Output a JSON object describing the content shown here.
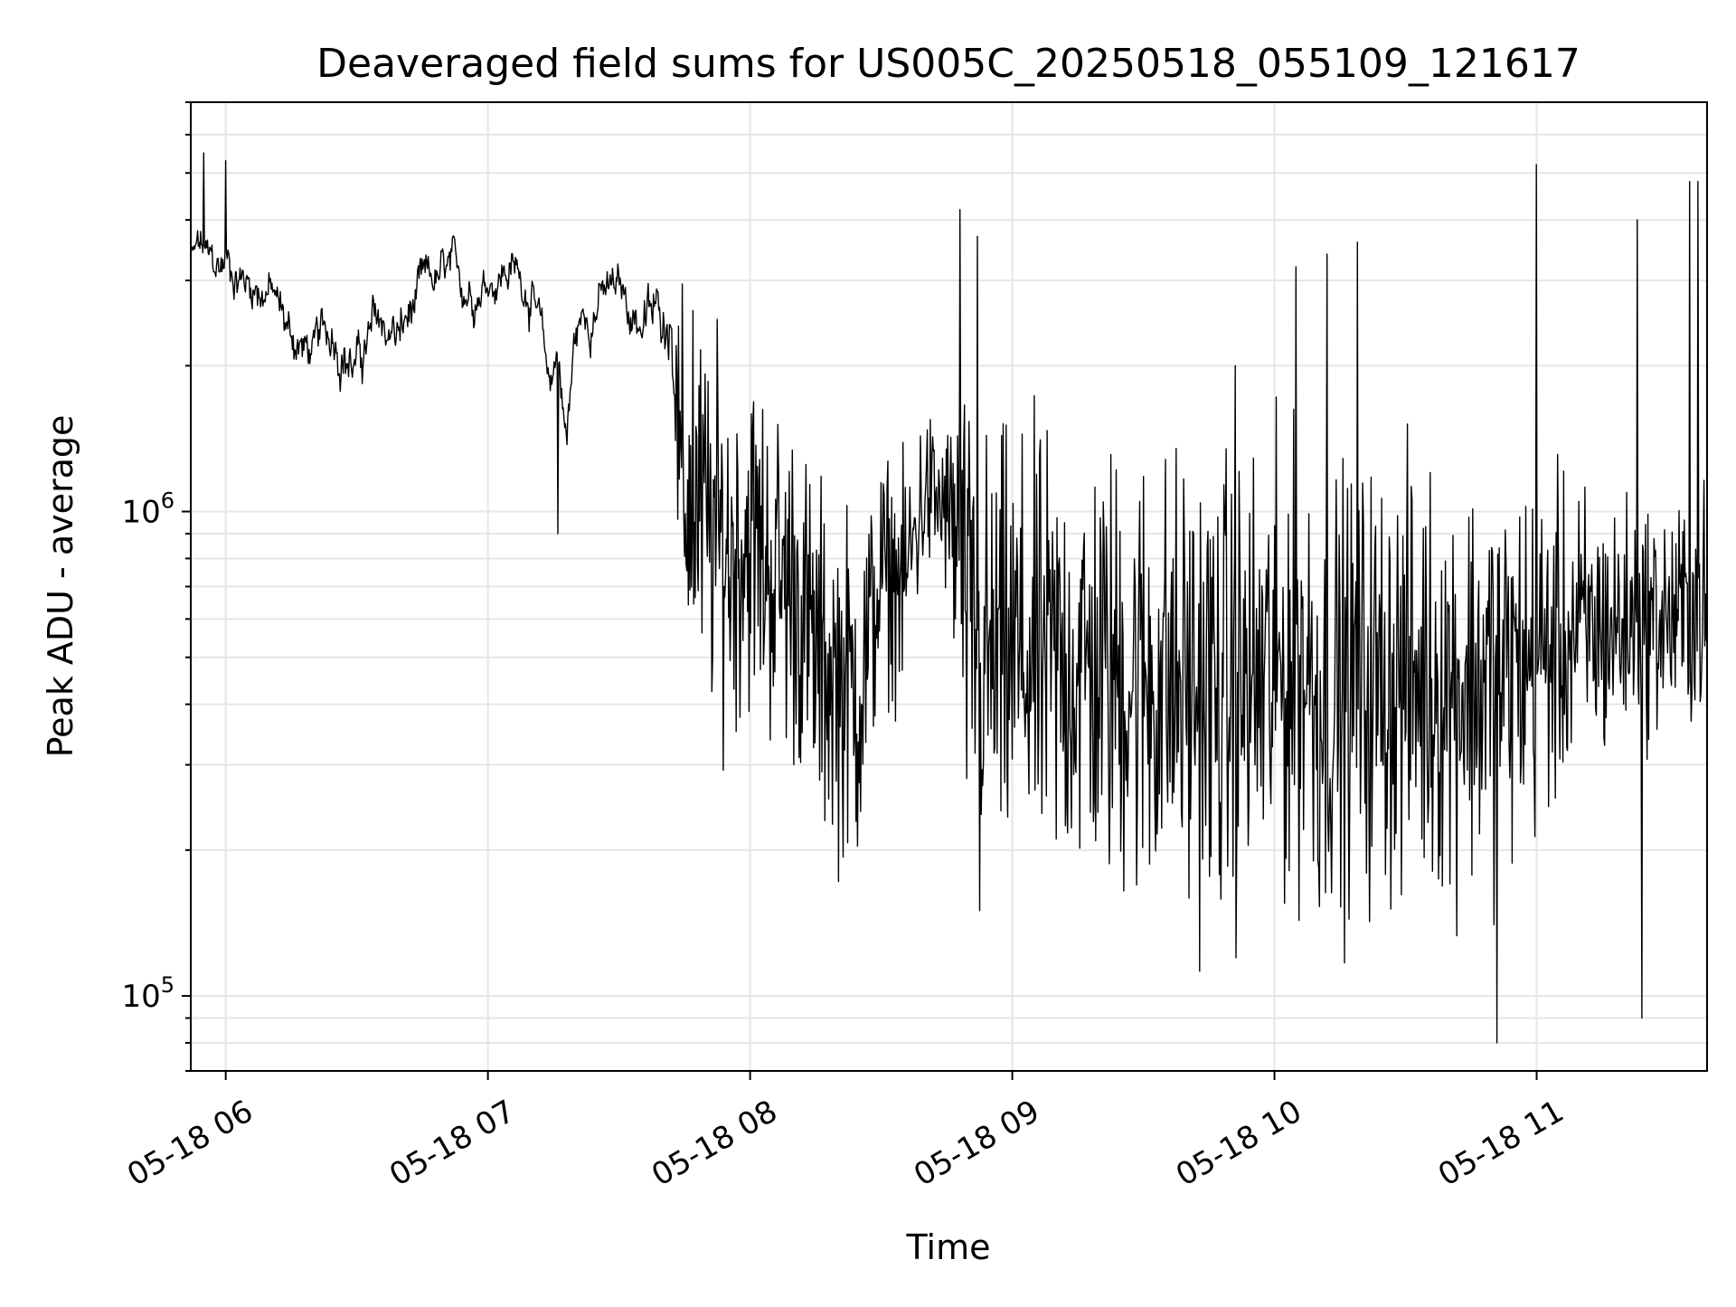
{
  "chart_data": {
    "type": "line",
    "title": "Deaveraged field sums for US005C_20250518_055109_121617",
    "xlabel": "Time",
    "ylabel": "Peak ADU - average",
    "yscale": "log",
    "grid": true,
    "xlim": [
      "2025-05-18T05:52:00",
      "2025-05-18T11:39:00"
    ],
    "ylim": [
      70000,
      7000000
    ],
    "x_ticks": [
      "05-18 06",
      "05-18 07",
      "05-18 08",
      "05-18 09",
      "05-18 10",
      "05-18 11"
    ],
    "y_ticks": [
      {
        "base": "10",
        "exp": "5",
        "value": 100000
      },
      {
        "base": "10",
        "exp": "6",
        "value": 1000000
      }
    ],
    "line_color": "#000000",
    "series": [
      {
        "x": [
          "2025-05-18T05:52:00",
          "2025-05-18T05:54:00",
          "2025-05-18T05:56:00",
          "2025-05-18T05:58:00",
          "2025-05-18T06:00:00",
          "2025-05-18T06:05:00",
          "2025-05-18T06:10:00",
          "2025-05-18T06:15:00",
          "2025-05-18T06:20:00",
          "2025-05-18T06:25:00",
          "2025-05-18T06:30:00",
          "2025-05-18T06:35:00",
          "2025-05-18T06:40:00",
          "2025-05-18T06:45:00",
          "2025-05-18T06:50:00",
          "2025-05-18T06:55:00",
          "2025-05-18T07:00:00",
          "2025-05-18T07:05:00",
          "2025-05-18T07:10:00",
          "2025-05-18T07:14:00",
          "2025-05-18T07:16:00",
          "2025-05-18T07:18:00",
          "2025-05-18T07:20:00",
          "2025-05-18T07:25:00",
          "2025-05-18T07:30:00",
          "2025-05-18T07:35:00",
          "2025-05-18T07:40:00",
          "2025-05-18T07:42:00",
          "2025-05-18T07:44:00",
          "2025-05-18T07:48:00",
          "2025-05-18T07:52:00",
          "2025-05-18T07:56:00",
          "2025-05-18T08:00:00",
          "2025-05-18T08:05:00",
          "2025-05-18T08:10:00",
          "2025-05-18T08:15:00",
          "2025-05-18T08:20:00",
          "2025-05-18T08:25:00",
          "2025-05-18T08:30:00",
          "2025-05-18T08:35:00",
          "2025-05-18T08:40:00",
          "2025-05-18T08:45:00",
          "2025-05-18T08:48:00",
          "2025-05-18T08:50:00",
          "2025-05-18T08:52:00",
          "2025-05-18T08:55:00",
          "2025-05-18T09:00:00",
          "2025-05-18T09:10:00",
          "2025-05-18T09:20:00",
          "2025-05-18T09:30:00",
          "2025-05-18T09:40:00",
          "2025-05-18T09:50:00",
          "2025-05-18T10:00:00",
          "2025-05-18T10:08:00",
          "2025-05-18T10:10:00",
          "2025-05-18T10:15:00",
          "2025-05-18T10:20:00",
          "2025-05-18T10:30:00",
          "2025-05-18T10:40:00",
          "2025-05-18T10:50:00",
          "2025-05-18T11:00:00",
          "2025-05-18T11:10:00",
          "2025-05-18T11:20:00",
          "2025-05-18T11:25:00",
          "2025-05-18T11:30:00",
          "2025-05-18T11:35:00",
          "2025-05-18T11:39:00"
        ],
        "center": [
          3300000,
          3500000,
          3200000,
          3100000,
          3300000,
          3000000,
          2900000,
          2300000,
          2100000,
          2400000,
          2000000,
          2400000,
          2300000,
          2800000,
          3000000,
          2900000,
          3100000,
          3200000,
          2900000,
          1800000,
          2200000,
          1400000,
          2300000,
          2800000,
          2800000,
          2500000,
          2500000,
          2600000,
          1100000,
          1000000,
          900000,
          800000,
          900000,
          750000,
          700000,
          500000,
          450000,
          420000,
          750000,
          700000,
          1100000,
          1000000,
          800000,
          550000,
          500000,
          480000,
          500000,
          480000,
          470000,
          450000,
          430000,
          420000,
          450000,
          480000,
          400000,
          420000,
          430000,
          450000,
          440000,
          450000,
          500000,
          560000,
          580000,
          600000,
          600000,
          620000,
          640000
        ],
        "spread": [
          0.04,
          0.05,
          0.05,
          0.05,
          0.05,
          0.05,
          0.05,
          0.05,
          0.05,
          0.06,
          0.06,
          0.06,
          0.06,
          0.05,
          0.05,
          0.05,
          0.05,
          0.05,
          0.05,
          0.05,
          0.05,
          0.06,
          0.06,
          0.05,
          0.05,
          0.06,
          0.06,
          0.06,
          0.32,
          0.32,
          0.32,
          0.3,
          0.3,
          0.3,
          0.3,
          0.3,
          0.3,
          0.3,
          0.2,
          0.2,
          0.15,
          0.15,
          0.35,
          0.38,
          0.38,
          0.38,
          0.38,
          0.38,
          0.38,
          0.4,
          0.4,
          0.4,
          0.4,
          0.38,
          0.38,
          0.38,
          0.38,
          0.37,
          0.36,
          0.35,
          0.3,
          0.25,
          0.22,
          0.2,
          0.2,
          0.2,
          0.2
        ]
      }
    ],
    "spikes": [
      {
        "x": "2025-05-18T05:55:00",
        "y": 5500000
      },
      {
        "x": "2025-05-18T06:00:00",
        "y": 5300000
      },
      {
        "x": "2025-05-18T07:16:00",
        "y": 900000
      },
      {
        "x": "2025-05-18T07:47:00",
        "y": 2600000
      },
      {
        "x": "2025-05-18T08:48:00",
        "y": 4200000
      },
      {
        "x": "2025-05-18T08:52:00",
        "y": 3700000
      },
      {
        "x": "2025-05-18T08:52:30",
        "y": 150000
      },
      {
        "x": "2025-05-18T09:51:00",
        "y": 2000000
      },
      {
        "x": "2025-05-18T10:05:00",
        "y": 3200000
      },
      {
        "x": "2025-05-18T10:12:00",
        "y": 3400000
      },
      {
        "x": "2025-05-18T10:19:00",
        "y": 3600000
      },
      {
        "x": "2025-05-18T10:51:00",
        "y": 80000
      },
      {
        "x": "2025-05-18T11:00:00",
        "y": 5200000
      },
      {
        "x": "2025-05-18T11:23:00",
        "y": 4000000
      },
      {
        "x": "2025-05-18T11:24:00",
        "y": 90000
      },
      {
        "x": "2025-05-18T11:35:00",
        "y": 4800000
      },
      {
        "x": "2025-05-18T11:37:00",
        "y": 4800000
      }
    ]
  }
}
